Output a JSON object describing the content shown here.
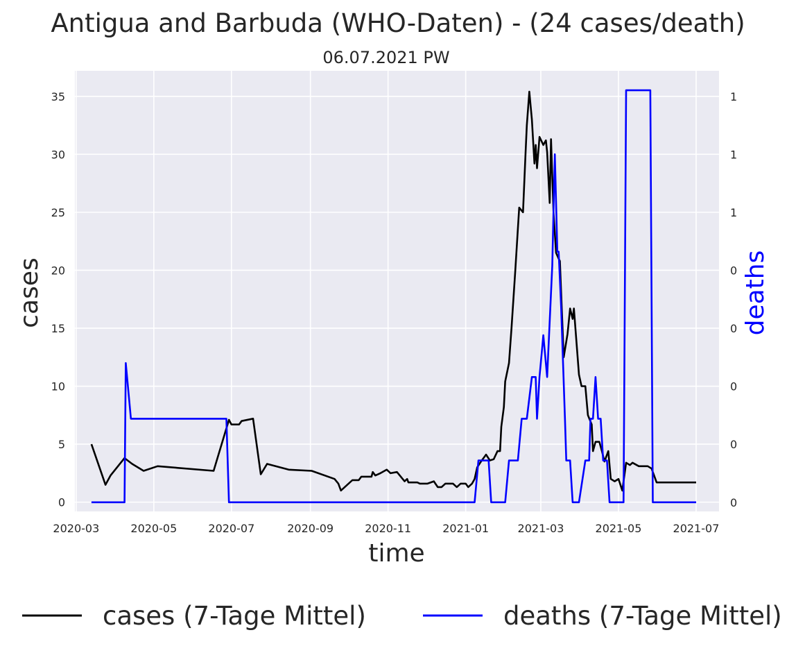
{
  "chart_data": {
    "type": "line",
    "title": "Antigua and Barbuda (WHO-Daten) - (24 cases/death)",
    "subtitle": "06.07.2021 PW",
    "xlabel": "time",
    "ylabel": "cases",
    "y2label": "deaths",
    "grid": true,
    "legend_placement": "bottom",
    "xlim": [
      "2020-02-29",
      "2021-07-19"
    ],
    "ylim": [
      -0.8,
      37.2
    ],
    "y2lim": [
      -0.033,
      1.55
    ],
    "x_ticks": [
      "2020-03-01",
      "2020-05-01",
      "2020-07-01",
      "2020-09-01",
      "2020-11-01",
      "2021-01-01",
      "2021-03-01",
      "2021-05-01",
      "2021-07-01"
    ],
    "x_tick_labels": [
      "2020-03",
      "2020-05",
      "2020-07",
      "2020-09",
      "2020-11",
      "2021-01",
      "2021-03",
      "2021-05",
      "2021-07"
    ],
    "y_ticks": [
      0,
      5,
      10,
      15,
      20,
      25,
      30,
      35
    ],
    "y_tick_labels": [
      "0",
      "5",
      "10",
      "15",
      "20",
      "25",
      "30",
      "35"
    ],
    "y2_ticks": [
      0,
      0.2083,
      0.4167,
      0.625,
      0.8333,
      1.0417,
      1.25,
      1.4583
    ],
    "y2_tick_labels": [
      "0",
      "0",
      "0",
      "0",
      "0",
      "1",
      "1",
      "1"
    ],
    "series": [
      {
        "name": "cases (7-Tage Mittel)",
        "color": "#000000",
        "axis": "left",
        "points": [
          [
            "2020-03-13",
            5.0
          ],
          [
            "2020-03-24",
            1.5
          ],
          [
            "2020-03-28",
            2.3
          ],
          [
            "2020-04-08",
            3.8
          ],
          [
            "2020-04-14",
            3.3
          ],
          [
            "2020-04-23",
            2.7
          ],
          [
            "2020-05-04",
            3.1
          ],
          [
            "2020-06-17",
            2.7
          ],
          [
            "2020-06-29",
            7.1
          ],
          [
            "2020-07-01",
            6.7
          ],
          [
            "2020-07-07",
            6.7
          ],
          [
            "2020-07-09",
            7.0
          ],
          [
            "2020-07-18",
            7.2
          ],
          [
            "2020-07-24",
            2.4
          ],
          [
            "2020-07-29",
            3.3
          ],
          [
            "2020-08-15",
            2.8
          ],
          [
            "2020-09-02",
            2.7
          ],
          [
            "2020-09-20",
            2.0
          ],
          [
            "2020-09-23",
            1.6
          ],
          [
            "2020-09-25",
            1.0
          ],
          [
            "2020-10-04",
            1.9
          ],
          [
            "2020-10-09",
            1.9
          ],
          [
            "2020-10-11",
            2.2
          ],
          [
            "2020-10-19",
            2.2
          ],
          [
            "2020-10-20",
            2.6
          ],
          [
            "2020-10-22",
            2.3
          ],
          [
            "2020-10-26",
            2.5
          ],
          [
            "2020-10-31",
            2.8
          ],
          [
            "2020-11-03",
            2.5
          ],
          [
            "2020-11-08",
            2.6
          ],
          [
            "2020-11-14",
            1.8
          ],
          [
            "2020-11-16",
            2.0
          ],
          [
            "2020-11-17",
            1.7
          ],
          [
            "2020-11-24",
            1.7
          ],
          [
            "2020-11-26",
            1.6
          ],
          [
            "2020-12-02",
            1.6
          ],
          [
            "2020-12-07",
            1.8
          ],
          [
            "2020-12-10",
            1.3
          ],
          [
            "2020-12-13",
            1.3
          ],
          [
            "2020-12-16",
            1.6
          ],
          [
            "2020-12-22",
            1.6
          ],
          [
            "2020-12-25",
            1.3
          ],
          [
            "2020-12-28",
            1.6
          ],
          [
            "2021-01-01",
            1.6
          ],
          [
            "2021-01-03",
            1.3
          ],
          [
            "2021-01-06",
            1.6
          ],
          [
            "2021-01-08",
            2.0
          ],
          [
            "2021-01-10",
            3.0
          ],
          [
            "2021-01-13",
            3.5
          ],
          [
            "2021-01-17",
            4.1
          ],
          [
            "2021-01-20",
            3.6
          ],
          [
            "2021-01-23",
            3.7
          ],
          [
            "2021-01-26",
            4.4
          ],
          [
            "2021-01-28",
            4.4
          ],
          [
            "2021-01-29",
            6.5
          ],
          [
            "2021-01-31",
            8.2
          ],
          [
            "2021-02-01",
            10.4
          ],
          [
            "2021-02-04",
            12.0
          ],
          [
            "2021-02-06",
            15.0
          ],
          [
            "2021-02-09",
            20.0
          ],
          [
            "2021-02-12",
            25.4
          ],
          [
            "2021-02-15",
            25.0
          ],
          [
            "2021-02-17",
            30.0
          ],
          [
            "2021-02-18",
            32.5
          ],
          [
            "2021-02-20",
            35.4
          ],
          [
            "2021-02-22",
            33.0
          ],
          [
            "2021-02-24",
            29.2
          ],
          [
            "2021-02-25",
            30.8
          ],
          [
            "2021-02-26",
            28.8
          ],
          [
            "2021-02-28",
            31.5
          ],
          [
            "2021-03-03",
            30.8
          ],
          [
            "2021-03-05",
            31.2
          ],
          [
            "2021-03-06",
            30.2
          ],
          [
            "2021-03-08",
            25.8
          ],
          [
            "2021-03-09",
            31.3
          ],
          [
            "2021-03-11",
            25.0
          ],
          [
            "2021-03-13",
            21.5
          ],
          [
            "2021-03-15",
            21.0
          ],
          [
            "2021-03-16",
            20.8
          ],
          [
            "2021-03-19",
            12.5
          ],
          [
            "2021-03-22",
            14.5
          ],
          [
            "2021-03-24",
            16.7
          ],
          [
            "2021-03-26",
            15.8
          ],
          [
            "2021-03-27",
            16.7
          ],
          [
            "2021-03-31",
            11.0
          ],
          [
            "2021-04-02",
            10.0
          ],
          [
            "2021-04-05",
            10.0
          ],
          [
            "2021-04-07",
            7.5
          ],
          [
            "2021-04-10",
            6.7
          ],
          [
            "2021-04-11",
            4.4
          ],
          [
            "2021-04-13",
            5.2
          ],
          [
            "2021-04-16",
            5.2
          ],
          [
            "2021-04-18",
            4.4
          ],
          [
            "2021-04-20",
            3.5
          ],
          [
            "2021-04-23",
            4.4
          ],
          [
            "2021-04-25",
            2.0
          ],
          [
            "2021-04-28",
            1.8
          ],
          [
            "2021-05-01",
            2.0
          ],
          [
            "2021-05-04",
            1.0
          ],
          [
            "2021-05-07",
            3.4
          ],
          [
            "2021-05-10",
            3.2
          ],
          [
            "2021-05-12",
            3.4
          ],
          [
            "2021-05-17",
            3.1
          ],
          [
            "2021-05-24",
            3.1
          ],
          [
            "2021-05-27",
            2.9
          ],
          [
            "2021-05-31",
            1.7
          ],
          [
            "2021-07-01",
            1.7
          ]
        ]
      },
      {
        "name": "deaths (7-Tage Mittel)",
        "color": "#0000ff",
        "axis": "right",
        "points": [
          [
            "2020-03-13",
            0.0
          ],
          [
            "2020-04-08",
            0.0
          ],
          [
            "2020-04-09",
            0.5
          ],
          [
            "2020-04-13",
            0.3
          ],
          [
            "2020-06-27",
            0.3
          ],
          [
            "2020-06-29",
            0.0
          ],
          [
            "2021-01-08",
            0.0
          ],
          [
            "2021-01-11",
            0.15
          ],
          [
            "2021-01-19",
            0.15
          ],
          [
            "2021-01-21",
            0.0
          ],
          [
            "2021-01-28",
            0.0
          ],
          [
            "2021-02-01",
            0.0
          ],
          [
            "2021-02-04",
            0.15
          ],
          [
            "2021-02-11",
            0.15
          ],
          [
            "2021-02-14",
            0.3
          ],
          [
            "2021-02-18",
            0.3
          ],
          [
            "2021-02-22",
            0.45
          ],
          [
            "2021-02-25",
            0.45
          ],
          [
            "2021-02-26",
            0.3
          ],
          [
            "2021-02-28",
            0.45
          ],
          [
            "2021-03-03",
            0.6
          ],
          [
            "2021-03-06",
            0.45
          ],
          [
            "2021-03-10",
            0.85
          ],
          [
            "2021-03-12",
            1.25
          ],
          [
            "2021-03-14",
            0.9
          ],
          [
            "2021-03-15",
            0.9
          ],
          [
            "2021-03-17",
            0.7
          ],
          [
            "2021-03-20",
            0.3
          ],
          [
            "2021-03-21",
            0.15
          ],
          [
            "2021-03-24",
            0.15
          ],
          [
            "2021-03-26",
            0.0
          ],
          [
            "2021-03-31",
            0.0
          ],
          [
            "2021-04-05",
            0.15
          ],
          [
            "2021-04-08",
            0.15
          ],
          [
            "2021-04-09",
            0.3
          ],
          [
            "2021-04-11",
            0.3
          ],
          [
            "2021-04-13",
            0.45
          ],
          [
            "2021-04-15",
            0.3
          ],
          [
            "2021-04-17",
            0.3
          ],
          [
            "2021-04-19",
            0.15
          ],
          [
            "2021-04-22",
            0.15
          ],
          [
            "2021-04-24",
            0.0
          ],
          [
            "2021-05-05",
            0.0
          ],
          [
            "2021-05-07",
            1.48
          ],
          [
            "2021-05-26",
            1.48
          ],
          [
            "2021-05-28",
            0.0
          ],
          [
            "2021-07-01",
            0.0
          ]
        ]
      }
    ]
  }
}
